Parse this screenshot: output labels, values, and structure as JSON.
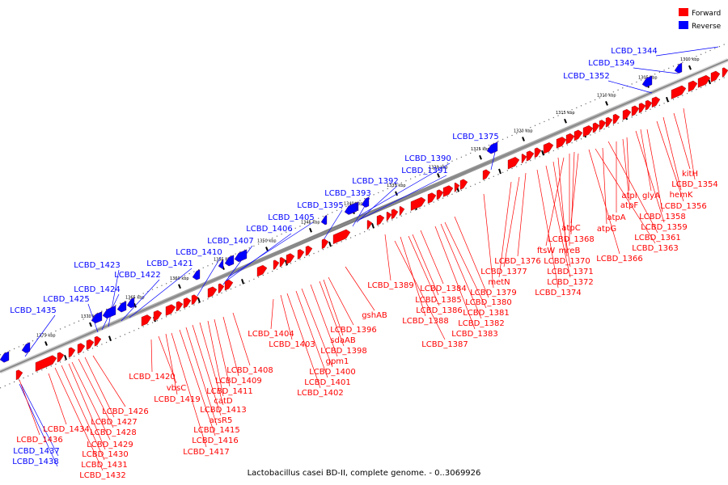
{
  "caption": "Lactobacillus casei BD-II, complete genome. - 0..3069926",
  "legend": [
    {
      "label": "Forward",
      "color": "#ff0000"
    },
    {
      "label": "Reverse",
      "color": "#0000ff"
    }
  ],
  "colors": {
    "forward": "#ff0000",
    "reverse": "#0000ff",
    "backbone": "#888888"
  },
  "ticks": [
    "1300 kbp",
    "1305 kbp",
    "1310 kbp",
    "1315 kbp",
    "1320 kbp",
    "1325 kbp",
    "1330 kbp",
    "1335 kbp",
    "1340 kbp",
    "1345 kbp",
    "1350 kbp",
    "1355 kbp",
    "1360 kbp",
    "1365 kbp",
    "1370 kbp",
    "1375 kbp"
  ],
  "reverse_labels": [
    "LCBD_1344",
    "LCBD_1349",
    "LCBD_1352",
    "LCBD_1375",
    "LCBD_1390",
    "LCBD_1391",
    "LCBD_1392",
    "LCBD_1393",
    "LCBD_1395",
    "LCBD_1405",
    "LCBD_1406",
    "LCBD_1407",
    "LCBD_1410",
    "LCBD_1421",
    "LCBD_1422",
    "LCBD_1423",
    "LCBD_1424",
    "LCBD_1425",
    "LCBD_1435",
    "LCBD_1437",
    "LCBD_1438"
  ],
  "forward_labels": [
    "kitH",
    "LCBD_1354",
    "hemK",
    "LCBD_1356",
    "atpI",
    "glyA",
    "LCBD_1358",
    "atpF",
    "LCBD_1359",
    "atpA",
    "LCBD_1361",
    "atpG",
    "LCBD_1363",
    "LCBD_1366",
    "atpC",
    "LCBD_1368",
    "ftsW",
    "mreB",
    "LCBD_1370",
    "LCBD_1371",
    "LCBD_1372",
    "LCBD_1374",
    "LCBD_1376",
    "LCBD_1377",
    "metN",
    "LCBD_1379",
    "LCBD_1389",
    "LCBD_1384",
    "LCBD_1380",
    "LCBD_1385",
    "LCBD_1381",
    "LCBD_1386",
    "LCBD_1382",
    "LCBD_1388",
    "LCBD_1383",
    "LCBD_1387",
    "gshAB",
    "LCBD_1396",
    "sdaAB",
    "LCBD_1398",
    "gpm1",
    "LCBD_1400",
    "LCBD_1401",
    "LCBD_1402",
    "LCBD_1403",
    "LCBD_1404",
    "LCBD_1408",
    "LCBD_1409",
    "LCBD_1411",
    "catD",
    "LCBD_1413",
    "arsR5",
    "LCBD_1415",
    "LCBD_1416",
    "LCBD_1417",
    "LCBD_1420",
    "vbsC",
    "LCBD_1419",
    "LCBD_1426",
    "LCBD_1427",
    "LCBD_1428",
    "LCBD_1429",
    "LCBD_1430",
    "LCBD_1431",
    "LCBD_1432",
    "LCBD_1434",
    "LCBD_1436"
  ]
}
